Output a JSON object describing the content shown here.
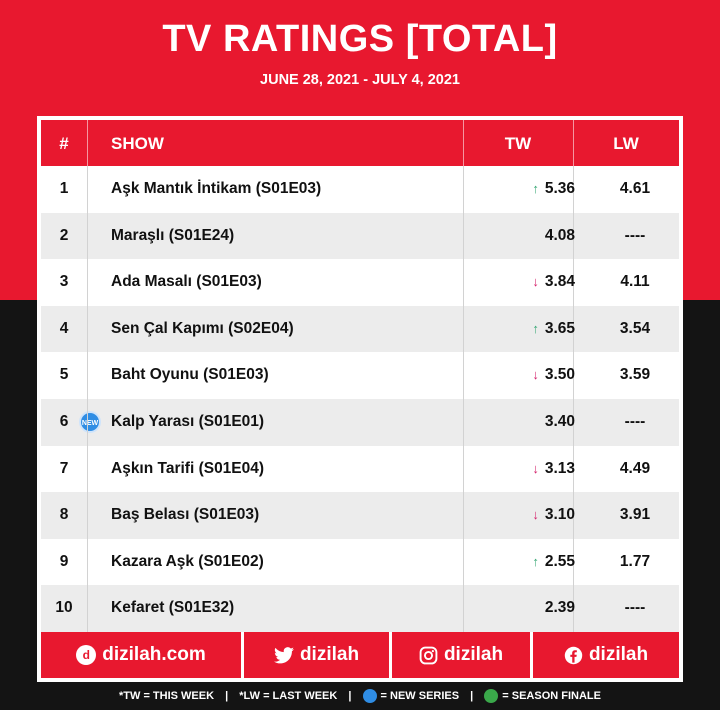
{
  "header": {
    "title": "TV RATINGS [TOTAL]",
    "subtitle": "JUNE 28, 2021 - JULY 4, 2021"
  },
  "table": {
    "columns": {
      "rank": "#",
      "show": "SHOW",
      "tw": "TW",
      "lw": "LW"
    },
    "rows": [
      {
        "rank": "1",
        "show": "Aşk Mantık İntikam (S01E03)",
        "trend": "up",
        "tw": "5.36",
        "lw": "4.61",
        "is_new": false
      },
      {
        "rank": "2",
        "show": "Maraşlı (S01E24)",
        "trend": "none",
        "tw": "4.08",
        "lw": "----",
        "is_new": false
      },
      {
        "rank": "3",
        "show": "Ada Masalı (S01E03)",
        "trend": "down",
        "tw": "3.84",
        "lw": "4.11",
        "is_new": false
      },
      {
        "rank": "4",
        "show": "Sen Çal Kapımı (S02E04)",
        "trend": "up",
        "tw": "3.65",
        "lw": "3.54",
        "is_new": false
      },
      {
        "rank": "5",
        "show": "Baht Oyunu (S01E03)",
        "trend": "down",
        "tw": "3.50",
        "lw": "3.59",
        "is_new": false
      },
      {
        "rank": "6",
        "show": "Kalp Yarası (S01E01)",
        "trend": "none",
        "tw": "3.40",
        "lw": "----",
        "is_new": true
      },
      {
        "rank": "7",
        "show": "Aşkın Tarifi (S01E04)",
        "trend": "down",
        "tw": "3.13",
        "lw": "4.49",
        "is_new": false
      },
      {
        "rank": "8",
        "show": "Baş Belası (S01E03)",
        "trend": "down",
        "tw": "3.10",
        "lw": "3.91",
        "is_new": false
      },
      {
        "rank": "9",
        "show": "Kazara Aşk (S01E02)",
        "trend": "up",
        "tw": "2.55",
        "lw": "1.77",
        "is_new": false
      },
      {
        "rank": "10",
        "show": "Kefaret (S01E32)",
        "trend": "none",
        "tw": "2.39",
        "lw": "----",
        "is_new": false
      }
    ],
    "new_badge": "NEW"
  },
  "footer": {
    "website": "dizilah.com",
    "twitter": "dizilah",
    "instagram": "dizilah",
    "facebook": "dizilah"
  },
  "legend": {
    "tw": "*TW = THIS WEEK",
    "lw": "*LW = LAST WEEK",
    "new_series": "= NEW SERIES",
    "season_finale": "= SEASON FINALE",
    "separator": "|"
  },
  "colors": {
    "brand_red": "#e8182f",
    "trend_up": "#3aa876",
    "trend_down": "#d4236c",
    "new_badge": "#2f8de4",
    "finale_badge": "#3aa84a"
  }
}
